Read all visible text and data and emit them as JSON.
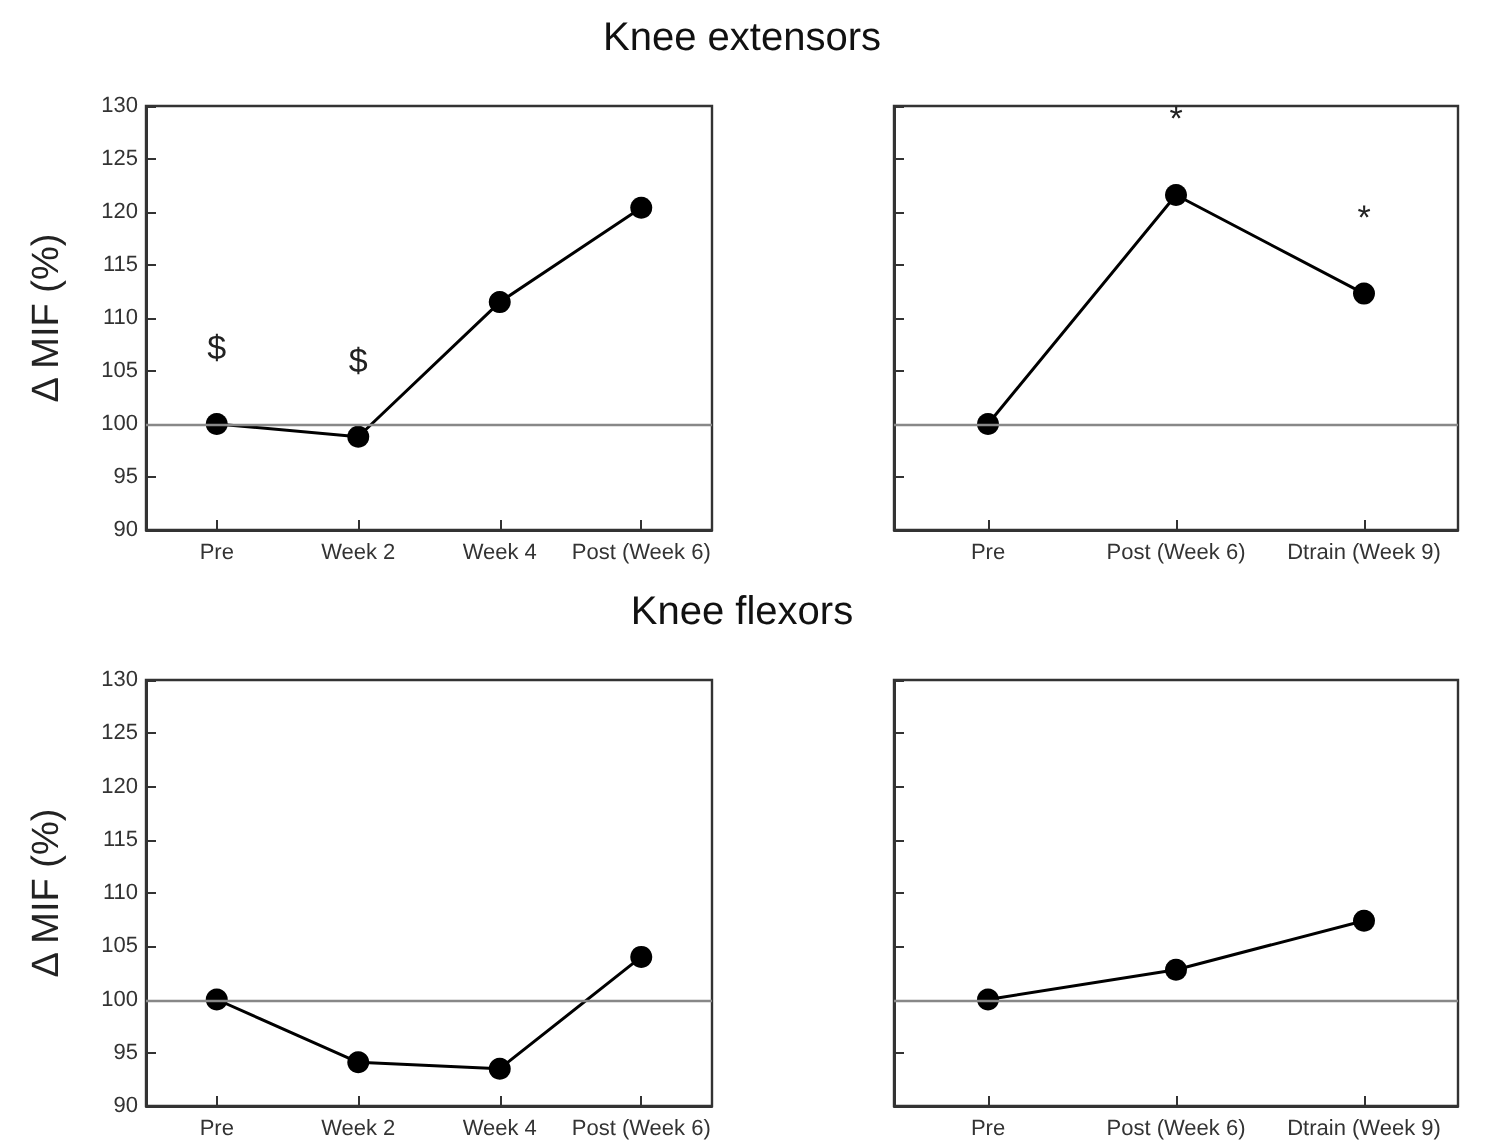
{
  "chart_data": [
    {
      "type": "line",
      "title": "Knee extensors",
      "ylabel": "Δ MIF (%)",
      "categories": [
        "Pre",
        "Week 2",
        "Week 4",
        "Post (Week 6)"
      ],
      "series": [
        {
          "color": "#000000",
          "values": [
            100,
            98.8,
            111.5,
            120.4
          ]
        }
      ],
      "ylim": [
        90,
        130
      ],
      "yticks": [
        90,
        95,
        100,
        105,
        110,
        115,
        120,
        125,
        130
      ],
      "marker": "circle",
      "line_style": "solid",
      "grid": false,
      "ref_lines": [
        {
          "axis": "y",
          "value": 100,
          "color": "#888888"
        }
      ],
      "annotations": [
        {
          "text": "$",
          "x": "Pre",
          "y": 100
        },
        {
          "text": "$",
          "x": "Week 2",
          "y": 98.8
        }
      ]
    },
    {
      "type": "line",
      "categories": [
        "Pre",
        "Post (Week 6)",
        "Dtrain (Week 9)"
      ],
      "series": [
        {
          "color": "#000000",
          "values": [
            100,
            121.6,
            112.3
          ]
        }
      ],
      "ylim": [
        90,
        130
      ],
      "yticks": [
        {
          "value": 90,
          "label": null
        },
        {
          "value": 95,
          "label": null
        },
        {
          "value": 100,
          "label": null
        },
        {
          "value": 105,
          "label": null
        },
        {
          "value": 110,
          "label": null
        },
        {
          "value": 115,
          "label": null
        },
        {
          "value": 120,
          "label": null
        },
        {
          "value": 125,
          "label": null
        },
        {
          "value": 130,
          "label": null
        }
      ],
      "tick_labels": "x",
      "marker": "circle",
      "line_style": "solid",
      "grid": false,
      "ref_lines": [
        {
          "axis": "y",
          "value": 100,
          "color": "#888888"
        }
      ],
      "annotations": [
        {
          "text": "*",
          "x": "Post (Week 6)",
          "y": 121.6
        },
        {
          "text": "*",
          "x": "Dtrain (Week 9)",
          "y": 112.3
        }
      ]
    },
    {
      "type": "line",
      "title": "Knee flexors",
      "ylabel": "Δ MIF (%)",
      "categories": [
        "Pre",
        "Week 2",
        "Week 4",
        "Post (Week 6)"
      ],
      "series": [
        {
          "color": "#000000",
          "values": [
            100,
            94.1,
            93.5,
            104.0
          ]
        }
      ],
      "ylim": [
        90,
        130
      ],
      "yticks": [
        90,
        95,
        100,
        105,
        110,
        115,
        120,
        125,
        130
      ],
      "marker": "circle",
      "line_style": "solid",
      "grid": false,
      "ref_lines": [
        {
          "axis": "y",
          "value": 100,
          "color": "#888888"
        }
      ]
    },
    {
      "type": "line",
      "categories": [
        "Pre",
        "Post (Week 6)",
        "Dtrain (Week 9)"
      ],
      "series": [
        {
          "color": "#000000",
          "values": [
            100,
            102.8,
            107.4
          ]
        }
      ],
      "ylim": [
        90,
        130
      ],
      "yticks": [
        {
          "value": 90,
          "label": null
        },
        {
          "value": 95,
          "label": null
        },
        {
          "value": 100,
          "label": null
        },
        {
          "value": 105,
          "label": null
        },
        {
          "value": 110,
          "label": null
        },
        {
          "value": 115,
          "label": null
        },
        {
          "value": 120,
          "label": null
        },
        {
          "value": 125,
          "label": null
        },
        {
          "value": 130,
          "label": null
        }
      ],
      "tick_labels": "x",
      "marker": "circle",
      "line_style": "solid",
      "grid": false,
      "ref_lines": [
        {
          "axis": "y",
          "value": 100,
          "color": "#888888"
        }
      ]
    }
  ]
}
